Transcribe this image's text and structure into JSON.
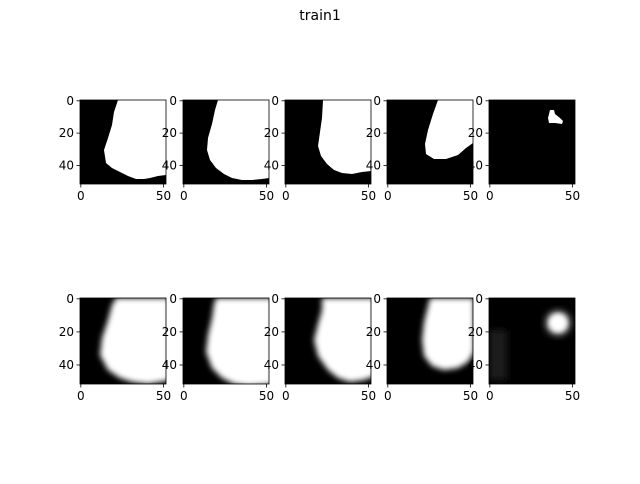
{
  "figure": {
    "title": "train1"
  },
  "chart_data": {
    "type": "heatmap",
    "colormap": "gray",
    "grid": false,
    "layout": {
      "rows": 2,
      "cols": 5
    },
    "axes": {
      "xticks": [
        "0",
        "50"
      ],
      "yticks": [
        "0",
        "20",
        "40"
      ],
      "xlim": [
        0,
        52
      ],
      "ylim": [
        52,
        0
      ]
    },
    "panels": [
      {
        "row": 0,
        "col": 0,
        "kind": "binary mask"
      },
      {
        "row": 0,
        "col": 1,
        "kind": "binary mask"
      },
      {
        "row": 0,
        "col": 2,
        "kind": "binary mask"
      },
      {
        "row": 0,
        "col": 3,
        "kind": "binary mask"
      },
      {
        "row": 0,
        "col": 4,
        "kind": "binary mask"
      },
      {
        "row": 1,
        "col": 0,
        "kind": "blurred prediction"
      },
      {
        "row": 1,
        "col": 1,
        "kind": "blurred prediction"
      },
      {
        "row": 1,
        "col": 2,
        "kind": "blurred prediction"
      },
      {
        "row": 1,
        "col": 3,
        "kind": "blurred prediction"
      },
      {
        "row": 1,
        "col": 4,
        "kind": "blurred prediction"
      }
    ]
  }
}
